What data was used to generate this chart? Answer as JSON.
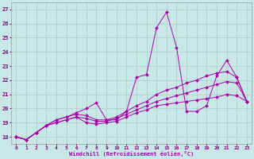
{
  "xlabel": "Windchill (Refroidissement éolien,°C)",
  "xlim": [
    -0.5,
    23.5
  ],
  "ylim": [
    17.5,
    27.5
  ],
  "xticks": [
    0,
    1,
    2,
    3,
    4,
    5,
    6,
    7,
    8,
    9,
    10,
    11,
    12,
    13,
    14,
    15,
    16,
    17,
    18,
    19,
    20,
    21,
    22,
    23
  ],
  "yticks": [
    18,
    19,
    20,
    21,
    22,
    23,
    24,
    25,
    26,
    27
  ],
  "bg_color": "#c8e8e8",
  "line_color": "#aa00aa",
  "grid_color": "#b0c8c8",
  "lines": [
    {
      "x": [
        0,
        1,
        2,
        3,
        4,
        5,
        6,
        7,
        8,
        9,
        10,
        11,
        12,
        13,
        14,
        15,
        16,
        17,
        18,
        19,
        20,
        21,
        22,
        23
      ],
      "y": [
        18.0,
        17.8,
        18.3,
        18.8,
        19.2,
        19.4,
        19.7,
        20.0,
        20.4,
        19.2,
        19.2,
        19.8,
        22.2,
        22.4,
        25.7,
        26.8,
        24.3,
        19.8,
        19.8,
        20.2,
        22.3,
        23.4,
        22.2,
        20.5
      ]
    },
    {
      "x": [
        0,
        1,
        2,
        3,
        4,
        5,
        6,
        7,
        8,
        9,
        10,
        11,
        12,
        13,
        14,
        15,
        16,
        17,
        18,
        19,
        20,
        21,
        22,
        23
      ],
      "y": [
        18.0,
        17.8,
        18.3,
        18.8,
        19.2,
        19.4,
        19.6,
        19.5,
        19.2,
        19.2,
        19.4,
        19.8,
        20.2,
        20.5,
        21.0,
        21.3,
        21.5,
        21.8,
        22.0,
        22.3,
        22.5,
        22.6,
        22.2,
        20.5
      ]
    },
    {
      "x": [
        0,
        1,
        2,
        3,
        4,
        5,
        6,
        7,
        8,
        9,
        10,
        11,
        12,
        13,
        14,
        15,
        16,
        17,
        18,
        19,
        20,
        21,
        22,
        23
      ],
      "y": [
        18.0,
        17.8,
        18.3,
        18.8,
        19.0,
        19.2,
        19.4,
        19.3,
        19.1,
        19.1,
        19.3,
        19.6,
        19.9,
        20.2,
        20.5,
        20.7,
        20.9,
        21.1,
        21.3,
        21.5,
        21.7,
        21.9,
        21.8,
        20.5
      ]
    },
    {
      "x": [
        0,
        1,
        2,
        3,
        4,
        5,
        6,
        7,
        8,
        9,
        10,
        11,
        12,
        13,
        14,
        15,
        16,
        17,
        18,
        19,
        20,
        21,
        22,
        23
      ],
      "y": [
        18.0,
        17.8,
        18.3,
        18.8,
        19.0,
        19.2,
        19.4,
        19.0,
        18.9,
        19.0,
        19.1,
        19.4,
        19.7,
        19.9,
        20.2,
        20.3,
        20.4,
        20.5,
        20.6,
        20.7,
        20.8,
        21.0,
        20.9,
        20.5
      ]
    }
  ]
}
